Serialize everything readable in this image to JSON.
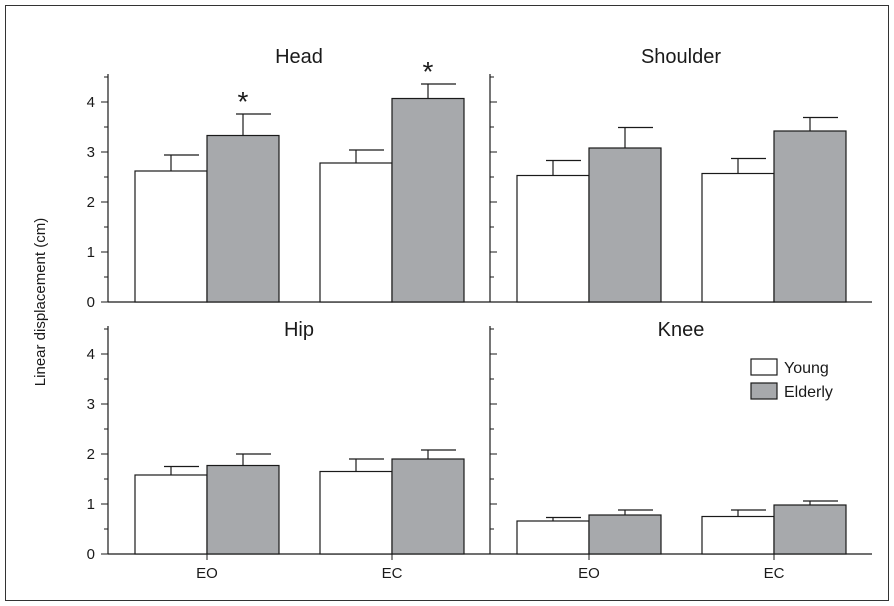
{
  "chart_data": {
    "type": "bar",
    "ylabel": "Linear displacement (cm)",
    "categories": [
      "EO",
      "EC"
    ],
    "ylim": [
      0,
      4.5
    ],
    "yticks": [
      0,
      1,
      2,
      3,
      4
    ],
    "legend": {
      "placement": "right",
      "entries": [
        "Young",
        "Elderly"
      ]
    },
    "colors": {
      "Young": "#ffffff",
      "Elderly": "#a7a9ac",
      "stroke": "#1a1a1a"
    },
    "significance_marker": "*",
    "panels": [
      {
        "title": "Head",
        "series": [
          {
            "name": "Young",
            "values": [
              2.62,
              2.78
            ],
            "errors": [
              0.32,
              0.26
            ]
          },
          {
            "name": "Elderly",
            "values": [
              3.33,
              4.07
            ],
            "errors": [
              0.43,
              0.29
            ]
          }
        ],
        "significant": [
          [
            1,
            0
          ],
          [
            1,
            1
          ]
        ]
      },
      {
        "title": "Shoulder",
        "series": [
          {
            "name": "Young",
            "values": [
              2.53,
              2.57
            ],
            "errors": [
              0.3,
              0.3
            ]
          },
          {
            "name": "Elderly",
            "values": [
              3.08,
              3.42
            ],
            "errors": [
              0.41,
              0.27
            ]
          }
        ],
        "significant": []
      },
      {
        "title": "Hip",
        "series": [
          {
            "name": "Young",
            "values": [
              1.58,
              1.65
            ],
            "errors": [
              0.17,
              0.25
            ]
          },
          {
            "name": "Elderly",
            "values": [
              1.77,
              1.9
            ],
            "errors": [
              0.23,
              0.18
            ]
          }
        ],
        "significant": []
      },
      {
        "title": "Knee",
        "series": [
          {
            "name": "Young",
            "values": [
              0.66,
              0.75
            ],
            "errors": [
              0.07,
              0.13
            ]
          },
          {
            "name": "Elderly",
            "values": [
              0.78,
              0.98
            ],
            "errors": [
              0.1,
              0.08
            ]
          }
        ],
        "significant": []
      }
    ]
  }
}
